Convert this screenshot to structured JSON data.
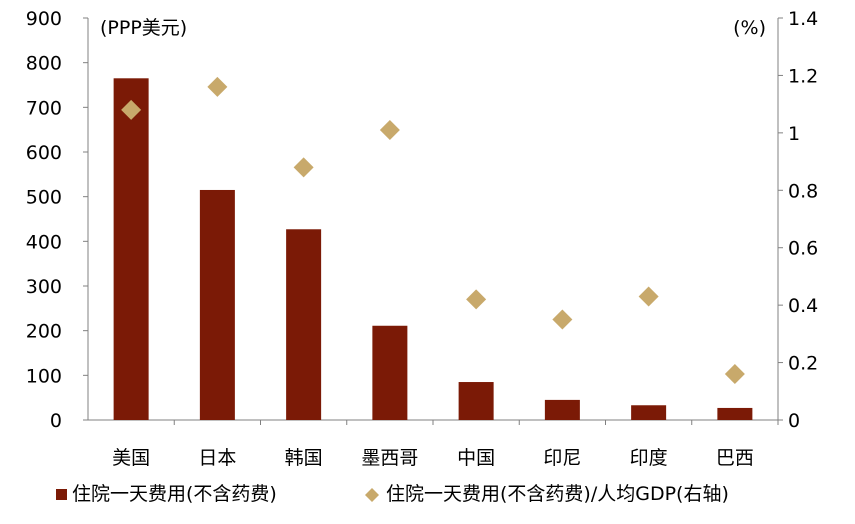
{
  "chart_data": {
    "type": "bar",
    "categories": [
      "美国",
      "日本",
      "韩国",
      "墨西哥",
      "中国",
      "印尼",
      "印度",
      "巴西"
    ],
    "series": [
      {
        "name": "住院一天费用(不含药费)",
        "axis": "left",
        "mark": "bar",
        "color": "#7B1A06",
        "values": [
          765,
          515,
          427,
          211,
          85,
          45,
          33,
          27
        ]
      },
      {
        "name": "住院一天费用(不含药费)/人均GDP(右轴)",
        "axis": "right",
        "mark": "diamond",
        "color": "#C8A96B",
        "values": [
          1.08,
          1.16,
          0.88,
          1.01,
          0.42,
          0.35,
          0.43,
          0.16
        ]
      }
    ],
    "y_left": {
      "unit": "(PPP美元)",
      "ylim": [
        0,
        900
      ],
      "ticks": [
        "0",
        "100",
        "200",
        "300",
        "400",
        "500",
        "600",
        "700",
        "800",
        "900"
      ]
    },
    "y_right": {
      "unit": "(%)",
      "ylim": [
        0,
        1.4
      ],
      "ticks": [
        "0",
        "0.2",
        "0.4",
        "0.6",
        "0.8",
        "1",
        "1.2",
        "1.4"
      ]
    },
    "legend_position": "bottom",
    "grid": false
  }
}
